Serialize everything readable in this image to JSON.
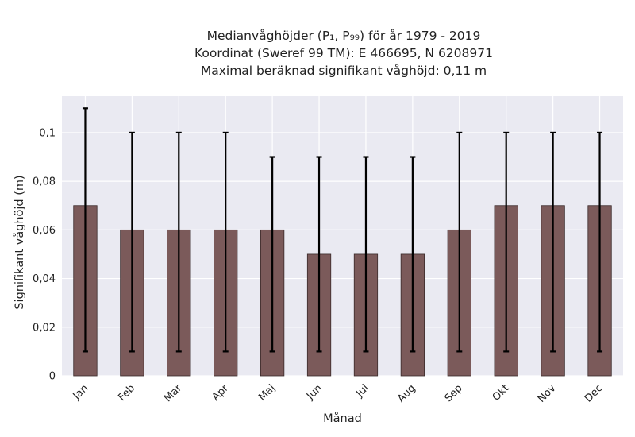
{
  "chart_data": {
    "type": "bar",
    "title_lines": [
      "Medianvåghöjder (P₁, P₉₉) för år 1979 - 2019",
      "Koordinat (Sweref 99 TM): E 466695, N 6208971",
      "Maximal beräknad signifikant våghöjd: 0,11 m"
    ],
    "xlabel": "Månad",
    "ylabel": "Signifikant våghöjd (m)",
    "categories": [
      "Jan",
      "Feb",
      "Mar",
      "Apr",
      "Maj",
      "Jun",
      "Jul",
      "Aug",
      "Sep",
      "Okt",
      "Nov",
      "Dec"
    ],
    "values": [
      0.07,
      0.06,
      0.06,
      0.06,
      0.06,
      0.05,
      0.05,
      0.05,
      0.06,
      0.07,
      0.07,
      0.07
    ],
    "error_low": [
      0.01,
      0.01,
      0.01,
      0.01,
      0.01,
      0.01,
      0.01,
      0.01,
      0.01,
      0.01,
      0.01,
      0.01
    ],
    "error_high": [
      0.11,
      0.1,
      0.1,
      0.1,
      0.09,
      0.09,
      0.09,
      0.09,
      0.1,
      0.1,
      0.1,
      0.1
    ],
    "yticks": [
      0,
      0.02,
      0.04,
      0.06,
      0.08,
      0.1
    ],
    "ytick_labels": [
      "0",
      "0,02",
      "0,04",
      "0,06",
      "0,08",
      "0,1"
    ],
    "ylim": [
      0,
      0.115
    ],
    "grid": true,
    "colors": {
      "bar": "#7b5a5a",
      "bar_edge": "#3a2a2a",
      "plot_bg": "#eaeaf2",
      "grid": "#ffffff",
      "errorbar": "#000000"
    }
  }
}
